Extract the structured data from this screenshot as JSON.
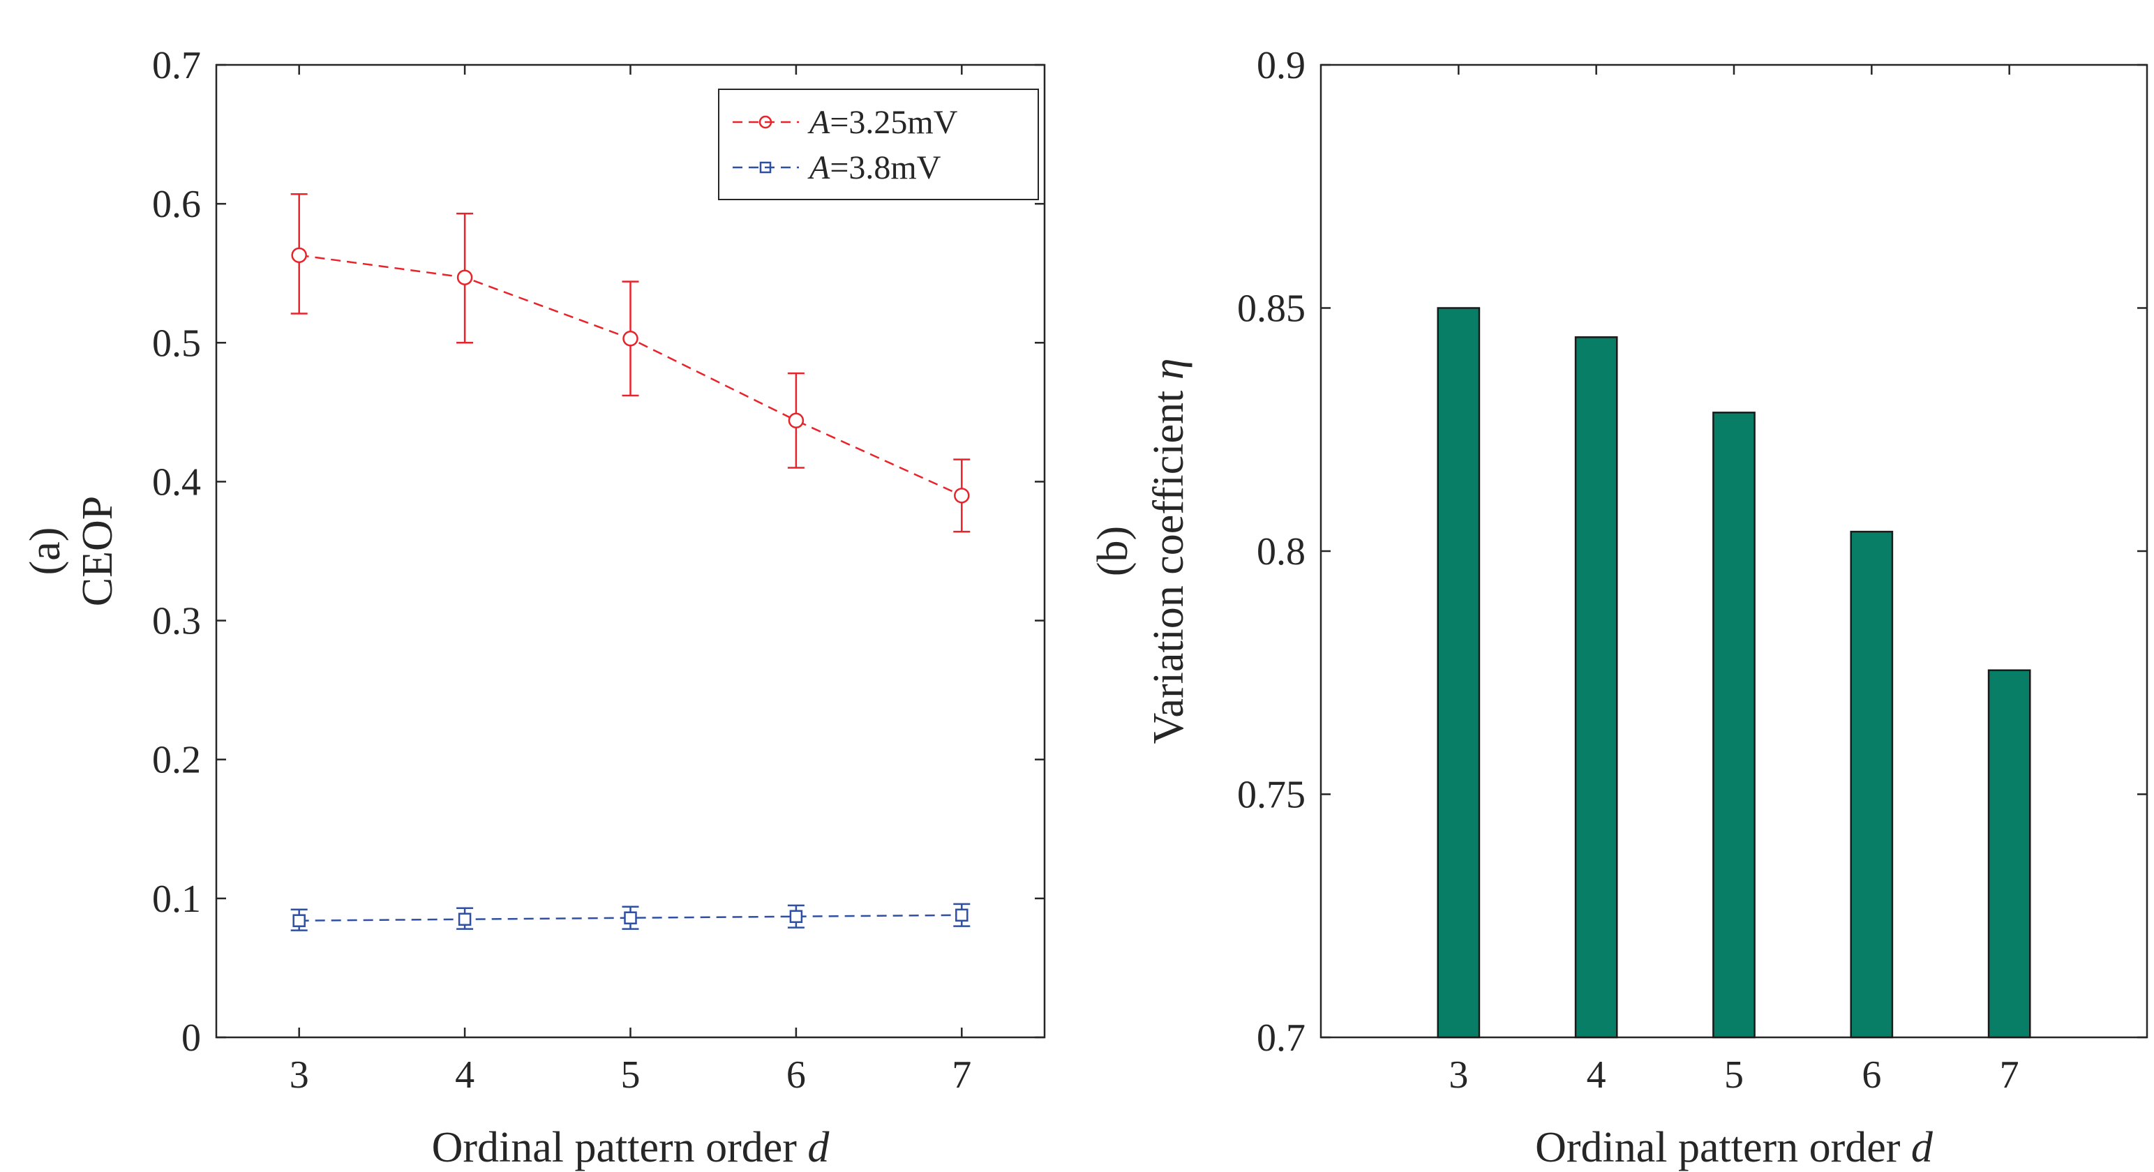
{
  "chart_data": [
    {
      "type": "line",
      "panel_label": "(a)",
      "xlabel": "Ordinal pattern order",
      "xlabel_var": "d",
      "ylabel": "CEOP",
      "x": [
        3,
        4,
        5,
        6,
        7
      ],
      "xlim": [
        2.5,
        7.5
      ],
      "ylim": [
        0,
        0.7
      ],
      "xticks": [
        "3",
        "4",
        "5",
        "6",
        "7"
      ],
      "yticks": [
        "0",
        "0.1",
        "0.2",
        "0.3",
        "0.4",
        "0.5",
        "0.6",
        "0.7"
      ],
      "legend_position": "top-right",
      "series": [
        {
          "name": "A=3.25mV",
          "legend_var": "A",
          "legend_value": "=3.25mV",
          "marker": "circle",
          "color": "#e8232a",
          "values": [
            0.563,
            0.547,
            0.503,
            0.444,
            0.39
          ],
          "err_low": [
            0.521,
            0.5,
            0.462,
            0.41,
            0.364
          ],
          "err_high": [
            0.607,
            0.593,
            0.544,
            0.478,
            0.416
          ]
        },
        {
          "name": "A=3.8mV",
          "legend_var": "A",
          "legend_value": "=3.8mV",
          "marker": "square",
          "color": "#2e4fa3",
          "values": [
            0.084,
            0.085,
            0.086,
            0.087,
            0.088
          ],
          "err_low": [
            0.077,
            0.078,
            0.078,
            0.079,
            0.08
          ],
          "err_high": [
            0.092,
            0.093,
            0.094,
            0.095,
            0.096
          ]
        }
      ]
    },
    {
      "type": "bar",
      "panel_label": "(b)",
      "xlabel": "Ordinal pattern order",
      "xlabel_var": "d",
      "ylabel": "Variation coefficient",
      "ylabel_var": "η",
      "categories": [
        "3",
        "4",
        "5",
        "6",
        "7"
      ],
      "x": [
        3,
        4,
        5,
        6,
        7
      ],
      "values": [
        0.85,
        0.844,
        0.8285,
        0.804,
        0.7755
      ],
      "xlim": [
        2,
        8
      ],
      "ylim": [
        0.7,
        0.9
      ],
      "yticks": [
        "0.7",
        "0.75",
        "0.8",
        "0.85",
        "0.9"
      ],
      "bar_color": "#077e65"
    }
  ]
}
